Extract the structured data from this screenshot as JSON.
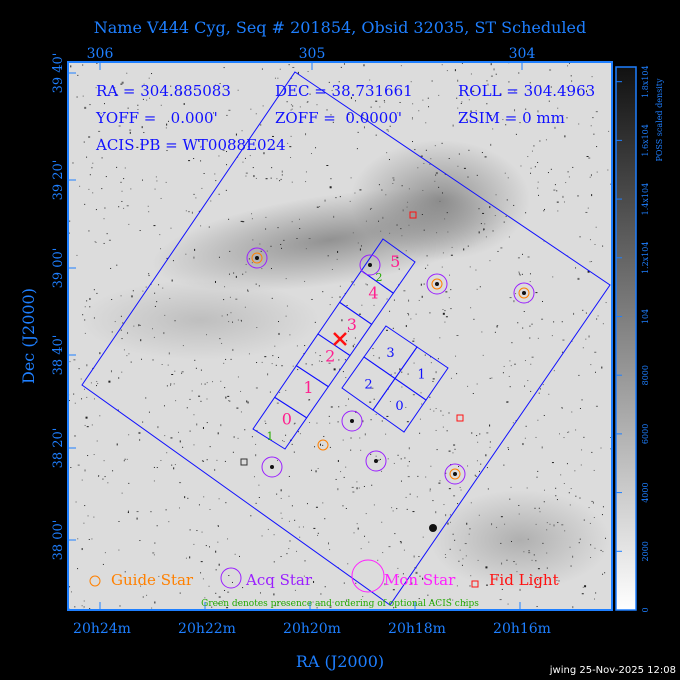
{
  "title": "Name V444 Cyg, Seq # 201854, Obsid 32035, ST Scheduled",
  "info": {
    "ra": "RA = 304.885083",
    "dec": "DEC = 38.731661",
    "roll": "ROLL = 304.4963",
    "yoff": "YOFF =   0.000'",
    "zoff": "ZOFF =  0.0000'",
    "zsim": "ZSIM = 0 mm",
    "acis_pb": "ACIS PB = WT0088E024"
  },
  "chart_data": {
    "type": "sky-image",
    "xlabel": "RA (J2000)",
    "ylabel": "Dec (J2000)",
    "x_ticks": [
      "20h24m",
      "20h22m",
      "20h20m",
      "20h18m",
      "20h16m"
    ],
    "top_ticks": [
      "306",
      "305",
      "304"
    ],
    "y_ticks": [
      "39 40'",
      "39 20'",
      "39 00'",
      "38 40'",
      "38 20'",
      "38 00'"
    ],
    "colorbar": {
      "label": "POSS scaled density",
      "ticks": [
        "0",
        "2000",
        "4000",
        "6000",
        "8000",
        "10^4",
        "1.2x10^4",
        "1.4x10^4",
        "1.6x10^4",
        "1.8x10^4"
      ],
      "range": [
        0,
        18500
      ]
    },
    "s_chips": [
      "0",
      "1",
      "2",
      "3",
      "4",
      "5"
    ],
    "i_chips": [
      "0",
      "1",
      "2",
      "3"
    ],
    "optional_chips": [
      "1",
      "2"
    ],
    "legend": [
      {
        "label": "Guide Star",
        "color": "#ff8000"
      },
      {
        "label": "Acq Star",
        "color": "#9a1fff"
      },
      {
        "label": "Mon Star",
        "color": "#ff1fff"
      },
      {
        "label": "Fid Light",
        "color": "#ff1010"
      }
    ],
    "note": "Green denotes presence and ordering of optional ACIS chips"
  },
  "footer": "jwing 25-Nov-2025 12:08",
  "colors": {
    "axis": "#1e7fff",
    "chip_s": "#ff1f8f",
    "chip_i": "#0000ff",
    "optional": "#22aa00"
  }
}
